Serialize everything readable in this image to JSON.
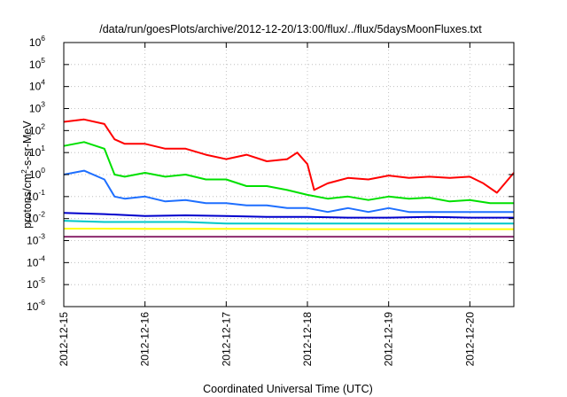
{
  "chart_data": {
    "type": "line",
    "title": "/data/run/goesPlots/archive/2012-12-20/13:00/flux/../flux/5daysMoonFluxes.txt",
    "xlabel": "Coordinated Universal Time (UTC)",
    "ylabel": {
      "prefix": "protons/cm",
      "superscript": "2",
      "suffix": "-s-sr-MeV"
    },
    "y_scale": "log",
    "ylim": [
      1e-06,
      1000000.0
    ],
    "y_ticks": [
      {
        "value": 1e-06,
        "base": "10",
        "exp": "-6"
      },
      {
        "value": 1e-05,
        "base": "10",
        "exp": "-5"
      },
      {
        "value": 0.0001,
        "base": "10",
        "exp": "-4"
      },
      {
        "value": 0.001,
        "base": "10",
        "exp": "-3"
      },
      {
        "value": 0.01,
        "base": "10",
        "exp": "-2"
      },
      {
        "value": 0.1,
        "base": "10",
        "exp": "-1"
      },
      {
        "value": 1.0,
        "base": "10",
        "exp": "0"
      },
      {
        "value": 10.0,
        "base": "10",
        "exp": "1"
      },
      {
        "value": 100.0,
        "base": "10",
        "exp": "2"
      },
      {
        "value": 1000.0,
        "base": "10",
        "exp": "3"
      },
      {
        "value": 10000.0,
        "base": "10",
        "exp": "4"
      },
      {
        "value": 100000.0,
        "base": "10",
        "exp": "5"
      },
      {
        "value": 1000000.0,
        "base": "10",
        "exp": "6"
      }
    ],
    "xlim": [
      "2012-12-15T00:00",
      "2012-12-20T13:00"
    ],
    "x_ticks": [
      "2012-12-15",
      "2012-12-16",
      "2012-12-17",
      "2012-12-18",
      "2012-12-19",
      "2012-12-20"
    ],
    "grid": true,
    "legend": "none",
    "series": [
      {
        "color": "#ff0000",
        "x": [
          "2012-12-15T00:00",
          "2012-12-15T06:00",
          "2012-12-15T12:00",
          "2012-12-15T15:00",
          "2012-12-15T18:00",
          "2012-12-16T00:00",
          "2012-12-16T06:00",
          "2012-12-16T12:00",
          "2012-12-16T18:00",
          "2012-12-17T00:00",
          "2012-12-17T06:00",
          "2012-12-17T12:00",
          "2012-12-17T18:00",
          "2012-12-17T21:00",
          "2012-12-18T00:00",
          "2012-12-18T02:00",
          "2012-12-18T06:00",
          "2012-12-18T12:00",
          "2012-12-18T18:00",
          "2012-12-19T00:00",
          "2012-12-19T06:00",
          "2012-12-19T12:00",
          "2012-12-19T18:00",
          "2012-12-20T00:00",
          "2012-12-20T04:00",
          "2012-12-20T08:00",
          "2012-12-20T13:00"
        ],
        "values": [
          250,
          320,
          200,
          40,
          25,
          25,
          15,
          15,
          8,
          5,
          8,
          4,
          5,
          10,
          3,
          0.2,
          0.4,
          0.7,
          0.6,
          0.9,
          0.7,
          0.8,
          0.7,
          0.8,
          0.4,
          0.15,
          1.2
        ]
      },
      {
        "color": "#00e000",
        "x": [
          "2012-12-15T00:00",
          "2012-12-15T06:00",
          "2012-12-15T12:00",
          "2012-12-15T15:00",
          "2012-12-15T18:00",
          "2012-12-16T00:00",
          "2012-12-16T06:00",
          "2012-12-16T12:00",
          "2012-12-16T18:00",
          "2012-12-17T00:00",
          "2012-12-17T06:00",
          "2012-12-17T12:00",
          "2012-12-17T18:00",
          "2012-12-18T00:00",
          "2012-12-18T06:00",
          "2012-12-18T12:00",
          "2012-12-18T18:00",
          "2012-12-19T00:00",
          "2012-12-19T06:00",
          "2012-12-19T12:00",
          "2012-12-19T18:00",
          "2012-12-20T00:00",
          "2012-12-20T06:00",
          "2012-12-20T13:00"
        ],
        "values": [
          20,
          30,
          15,
          1,
          0.8,
          1.2,
          0.8,
          1,
          0.6,
          0.6,
          0.3,
          0.3,
          0.2,
          0.12,
          0.08,
          0.1,
          0.07,
          0.1,
          0.08,
          0.09,
          0.06,
          0.07,
          0.05,
          0.05
        ]
      },
      {
        "color": "#1e6fff",
        "x": [
          "2012-12-15T00:00",
          "2012-12-15T06:00",
          "2012-12-15T12:00",
          "2012-12-15T15:00",
          "2012-12-15T18:00",
          "2012-12-16T00:00",
          "2012-12-16T06:00",
          "2012-12-16T12:00",
          "2012-12-16T18:00",
          "2012-12-17T00:00",
          "2012-12-17T06:00",
          "2012-12-17T12:00",
          "2012-12-17T18:00",
          "2012-12-18T00:00",
          "2012-12-18T06:00",
          "2012-12-18T12:00",
          "2012-12-18T18:00",
          "2012-12-19T00:00",
          "2012-12-19T06:00",
          "2012-12-19T12:00",
          "2012-12-19T18:00",
          "2012-12-20T00:00",
          "2012-12-20T06:00",
          "2012-12-20T13:00"
        ],
        "values": [
          1,
          1.5,
          0.6,
          0.1,
          0.08,
          0.1,
          0.06,
          0.07,
          0.05,
          0.05,
          0.04,
          0.04,
          0.03,
          0.03,
          0.02,
          0.03,
          0.02,
          0.03,
          0.02,
          0.02,
          0.02,
          0.02,
          0.02,
          0.02
        ]
      },
      {
        "color": "#0000cc",
        "x": [
          "2012-12-15T00:00",
          "2012-12-15T12:00",
          "2012-12-16T00:00",
          "2012-12-16T12:00",
          "2012-12-17T00:00",
          "2012-12-17T12:00",
          "2012-12-18T00:00",
          "2012-12-18T12:00",
          "2012-12-19T00:00",
          "2012-12-19T12:00",
          "2012-12-20T00:00",
          "2012-12-20T13:00"
        ],
        "values": [
          0.018,
          0.016,
          0.013,
          0.014,
          0.013,
          0.012,
          0.012,
          0.011,
          0.011,
          0.012,
          0.011,
          0.011
        ]
      },
      {
        "color": "#00c8c8",
        "x": [
          "2012-12-15T00:00",
          "2012-12-15T12:00",
          "2012-12-16T00:00",
          "2012-12-16T12:00",
          "2012-12-17T00:00",
          "2012-12-17T12:00",
          "2012-12-18T00:00",
          "2012-12-18T12:00",
          "2012-12-19T00:00",
          "2012-12-19T12:00",
          "2012-12-20T00:00",
          "2012-12-20T13:00"
        ],
        "values": [
          0.008,
          0.007,
          0.007,
          0.007,
          0.006,
          0.006,
          0.006,
          0.006,
          0.006,
          0.006,
          0.006,
          0.006
        ]
      },
      {
        "color": "#ffff00",
        "x": [
          "2012-12-15T00:00",
          "2012-12-15T12:00",
          "2012-12-16T00:00",
          "2012-12-16T12:00",
          "2012-12-17T00:00",
          "2012-12-17T12:00",
          "2012-12-18T00:00",
          "2012-12-18T12:00",
          "2012-12-19T00:00",
          "2012-12-19T12:00",
          "2012-12-20T00:00",
          "2012-12-20T13:00"
        ],
        "values": [
          0.0035,
          0.0035,
          0.0034,
          0.0034,
          0.0034,
          0.0034,
          0.0033,
          0.0033,
          0.0033,
          0.0033,
          0.0033,
          0.0033
        ]
      },
      {
        "color": "#8b2a6e",
        "x": [
          "2012-12-15T00:00",
          "2012-12-15T12:00",
          "2012-12-16T00:00",
          "2012-12-16T12:00",
          "2012-12-17T00:00",
          "2012-12-17T12:00",
          "2012-12-18T00:00",
          "2012-12-18T12:00",
          "2012-12-19T00:00",
          "2012-12-19T12:00",
          "2012-12-20T00:00",
          "2012-12-20T13:00"
        ],
        "values": [
          0.0015,
          0.0015,
          0.0015,
          0.0015,
          0.0015,
          0.0015,
          0.0015,
          0.0015,
          0.0015,
          0.0015,
          0.0015,
          0.0015
        ]
      }
    ]
  }
}
